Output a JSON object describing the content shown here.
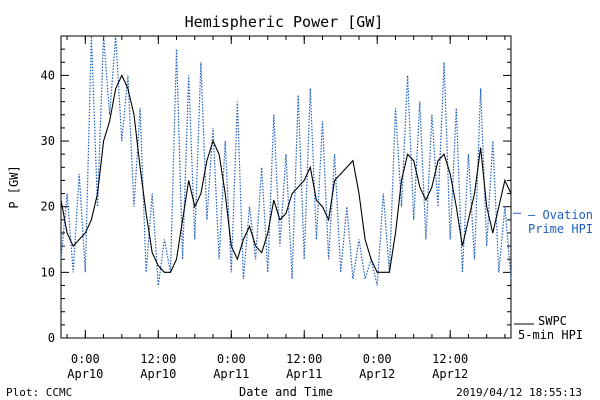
{
  "chart_data": {
    "type": "line",
    "title": "Hemispheric Power [GW]",
    "xlabel": "Date and Time",
    "ylabel": "P [GW]",
    "ylim": [
      0,
      46
    ],
    "yticks": [
      0,
      10,
      20,
      30,
      40
    ],
    "xlim": [
      "2019-04-09 20:00",
      "2019-04-12 22:00"
    ],
    "xticks": [
      {
        "t": "2019-04-10 00:00",
        "label1": "0:00",
        "label2": "Apr10"
      },
      {
        "t": "2019-04-10 12:00",
        "label1": "12:00",
        "label2": "Apr10"
      },
      {
        "t": "2019-04-11 00:00",
        "label1": "0:00",
        "label2": "Apr11"
      },
      {
        "t": "2019-04-11 12:00",
        "label1": "12:00",
        "label2": "Apr11"
      },
      {
        "t": "2019-04-12 00:00",
        "label1": "0:00",
        "label2": "Apr12"
      },
      {
        "t": "2019-04-12 12:00",
        "label1": "12:00",
        "label2": "Apr12"
      }
    ],
    "grid": false,
    "legend_position": "right",
    "series": [
      {
        "name": "SWPC 5-min HPI",
        "legend_lines": [
          "SWPC",
          "5-min HPI"
        ],
        "color": "#000000",
        "style": "solid",
        "points": [
          [
            "2019-04-09 20:00",
            21
          ],
          [
            "2019-04-09 21:00",
            16
          ],
          [
            "2019-04-09 22:00",
            14
          ],
          [
            "2019-04-09 23:00",
            15
          ],
          [
            "2019-04-10 00:00",
            16
          ],
          [
            "2019-04-10 01:00",
            18
          ],
          [
            "2019-04-10 02:00",
            22
          ],
          [
            "2019-04-10 03:00",
            30
          ],
          [
            "2019-04-10 04:00",
            33
          ],
          [
            "2019-04-10 05:00",
            38
          ],
          [
            "2019-04-10 06:00",
            40
          ],
          [
            "2019-04-10 07:00",
            38
          ],
          [
            "2019-04-10 08:00",
            34
          ],
          [
            "2019-04-10 09:00",
            26
          ],
          [
            "2019-04-10 10:00",
            19
          ],
          [
            "2019-04-10 11:00",
            13
          ],
          [
            "2019-04-10 12:00",
            11
          ],
          [
            "2019-04-10 13:00",
            10
          ],
          [
            "2019-04-10 14:00",
            10
          ],
          [
            "2019-04-10 15:00",
            12
          ],
          [
            "2019-04-10 16:00",
            18
          ],
          [
            "2019-04-10 17:00",
            24
          ],
          [
            "2019-04-10 18:00",
            20
          ],
          [
            "2019-04-10 19:00",
            22
          ],
          [
            "2019-04-10 20:00",
            27
          ],
          [
            "2019-04-10 21:00",
            30
          ],
          [
            "2019-04-10 22:00",
            28
          ],
          [
            "2019-04-10 23:00",
            22
          ],
          [
            "2019-04-11 00:00",
            14
          ],
          [
            "2019-04-11 01:00",
            12
          ],
          [
            "2019-04-11 02:00",
            15
          ],
          [
            "2019-04-11 03:00",
            17
          ],
          [
            "2019-04-11 04:00",
            14
          ],
          [
            "2019-04-11 05:00",
            13
          ],
          [
            "2019-04-11 06:00",
            16
          ],
          [
            "2019-04-11 07:00",
            21
          ],
          [
            "2019-04-11 08:00",
            18
          ],
          [
            "2019-04-11 09:00",
            19
          ],
          [
            "2019-04-11 10:00",
            22
          ],
          [
            "2019-04-11 11:00",
            23
          ],
          [
            "2019-04-11 12:00",
            24
          ],
          [
            "2019-04-11 13:00",
            26
          ],
          [
            "2019-04-11 14:00",
            21
          ],
          [
            "2019-04-11 15:00",
            20
          ],
          [
            "2019-04-11 16:00",
            18
          ],
          [
            "2019-04-11 17:00",
            24
          ],
          [
            "2019-04-11 18:00",
            25
          ],
          [
            "2019-04-11 19:00",
            26
          ],
          [
            "2019-04-11 20:00",
            27
          ],
          [
            "2019-04-11 21:00",
            22
          ],
          [
            "2019-04-11 22:00",
            15
          ],
          [
            "2019-04-11 23:00",
            12
          ],
          [
            "2019-04-12 00:00",
            10
          ],
          [
            "2019-04-12 01:00",
            10
          ],
          [
            "2019-04-12 02:00",
            10
          ],
          [
            "2019-04-12 03:00",
            16
          ],
          [
            "2019-04-12 04:00",
            24
          ],
          [
            "2019-04-12 05:00",
            28
          ],
          [
            "2019-04-12 06:00",
            27
          ],
          [
            "2019-04-12 07:00",
            23
          ],
          [
            "2019-04-12 08:00",
            21
          ],
          [
            "2019-04-12 09:00",
            23
          ],
          [
            "2019-04-12 10:00",
            27
          ],
          [
            "2019-04-12 11:00",
            28
          ],
          [
            "2019-04-12 12:00",
            25
          ],
          [
            "2019-04-12 13:00",
            20
          ],
          [
            "2019-04-12 14:00",
            14
          ],
          [
            "2019-04-12 15:00",
            18
          ],
          [
            "2019-04-12 16:00",
            22
          ],
          [
            "2019-04-12 17:00",
            29
          ],
          [
            "2019-04-12 18:00",
            20
          ],
          [
            "2019-04-12 19:00",
            16
          ],
          [
            "2019-04-12 20:00",
            20
          ],
          [
            "2019-04-12 21:00",
            24
          ],
          [
            "2019-04-12 22:00",
            22
          ]
        ]
      },
      {
        "name": "Ovation Prime HPI",
        "legend_lines": [
          "— Ovation",
          "Prime HPI"
        ],
        "color": "#1f5fbf",
        "style": "dotted",
        "points": [
          [
            "2019-04-09 20:00",
            12
          ],
          [
            "2019-04-09 21:00",
            22
          ],
          [
            "2019-04-09 22:00",
            10
          ],
          [
            "2019-04-09 23:00",
            25
          ],
          [
            "2019-04-10 00:00",
            10
          ],
          [
            "2019-04-10 01:00",
            46
          ],
          [
            "2019-04-10 02:00",
            20
          ],
          [
            "2019-04-10 03:00",
            46
          ],
          [
            "2019-04-10 04:00",
            34
          ],
          [
            "2019-04-10 05:00",
            46
          ],
          [
            "2019-04-10 06:00",
            30
          ],
          [
            "2019-04-10 07:00",
            40
          ],
          [
            "2019-04-10 08:00",
            20
          ],
          [
            "2019-04-10 09:00",
            35
          ],
          [
            "2019-04-10 10:00",
            10
          ],
          [
            "2019-04-10 11:00",
            22
          ],
          [
            "2019-04-10 12:00",
            8
          ],
          [
            "2019-04-10 13:00",
            15
          ],
          [
            "2019-04-10 14:00",
            10
          ],
          [
            "2019-04-10 15:00",
            44
          ],
          [
            "2019-04-10 16:00",
            12
          ],
          [
            "2019-04-10 17:00",
            40
          ],
          [
            "2019-04-10 18:00",
            15
          ],
          [
            "2019-04-10 19:00",
            42
          ],
          [
            "2019-04-10 20:00",
            18
          ],
          [
            "2019-04-10 21:00",
            32
          ],
          [
            "2019-04-10 22:00",
            12
          ],
          [
            "2019-04-10 23:00",
            30
          ],
          [
            "2019-04-11 00:00",
            10
          ],
          [
            "2019-04-11 01:00",
            36
          ],
          [
            "2019-04-11 02:00",
            9
          ],
          [
            "2019-04-11 03:00",
            20
          ],
          [
            "2019-04-11 04:00",
            12
          ],
          [
            "2019-04-11 05:00",
            26
          ],
          [
            "2019-04-11 06:00",
            10
          ],
          [
            "2019-04-11 07:00",
            34
          ],
          [
            "2019-04-11 08:00",
            14
          ],
          [
            "2019-04-11 09:00",
            28
          ],
          [
            "2019-04-11 10:00",
            9
          ],
          [
            "2019-04-11 11:00",
            37
          ],
          [
            "2019-04-11 12:00",
            12
          ],
          [
            "2019-04-11 13:00",
            38
          ],
          [
            "2019-04-11 14:00",
            15
          ],
          [
            "2019-04-11 15:00",
            33
          ],
          [
            "2019-04-11 16:00",
            12
          ],
          [
            "2019-04-11 17:00",
            28
          ],
          [
            "2019-04-11 18:00",
            10
          ],
          [
            "2019-04-11 19:00",
            20
          ],
          [
            "2019-04-11 20:00",
            9
          ],
          [
            "2019-04-11 21:00",
            15
          ],
          [
            "2019-04-11 22:00",
            9
          ],
          [
            "2019-04-11 23:00",
            12
          ],
          [
            "2019-04-12 00:00",
            8
          ],
          [
            "2019-04-12 01:00",
            22
          ],
          [
            "2019-04-12 02:00",
            10
          ],
          [
            "2019-04-12 03:00",
            35
          ],
          [
            "2019-04-12 04:00",
            20
          ],
          [
            "2019-04-12 05:00",
            40
          ],
          [
            "2019-04-12 06:00",
            18
          ],
          [
            "2019-04-12 07:00",
            36
          ],
          [
            "2019-04-12 08:00",
            15
          ],
          [
            "2019-04-12 09:00",
            34
          ],
          [
            "2019-04-12 10:00",
            20
          ],
          [
            "2019-04-12 11:00",
            42
          ],
          [
            "2019-04-12 12:00",
            15
          ],
          [
            "2019-04-12 13:00",
            35
          ],
          [
            "2019-04-12 14:00",
            10
          ],
          [
            "2019-04-12 15:00",
            28
          ],
          [
            "2019-04-12 16:00",
            12
          ],
          [
            "2019-04-12 17:00",
            38
          ],
          [
            "2019-04-12 18:00",
            14
          ],
          [
            "2019-04-12 19:00",
            30
          ],
          [
            "2019-04-12 20:00",
            10
          ],
          [
            "2019-04-12 21:00",
            20
          ],
          [
            "2019-04-12 22:00",
            9
          ]
        ]
      }
    ]
  },
  "footer": {
    "left": "Plot: CCMC",
    "right": "2019/04/12 18:55:13"
  }
}
